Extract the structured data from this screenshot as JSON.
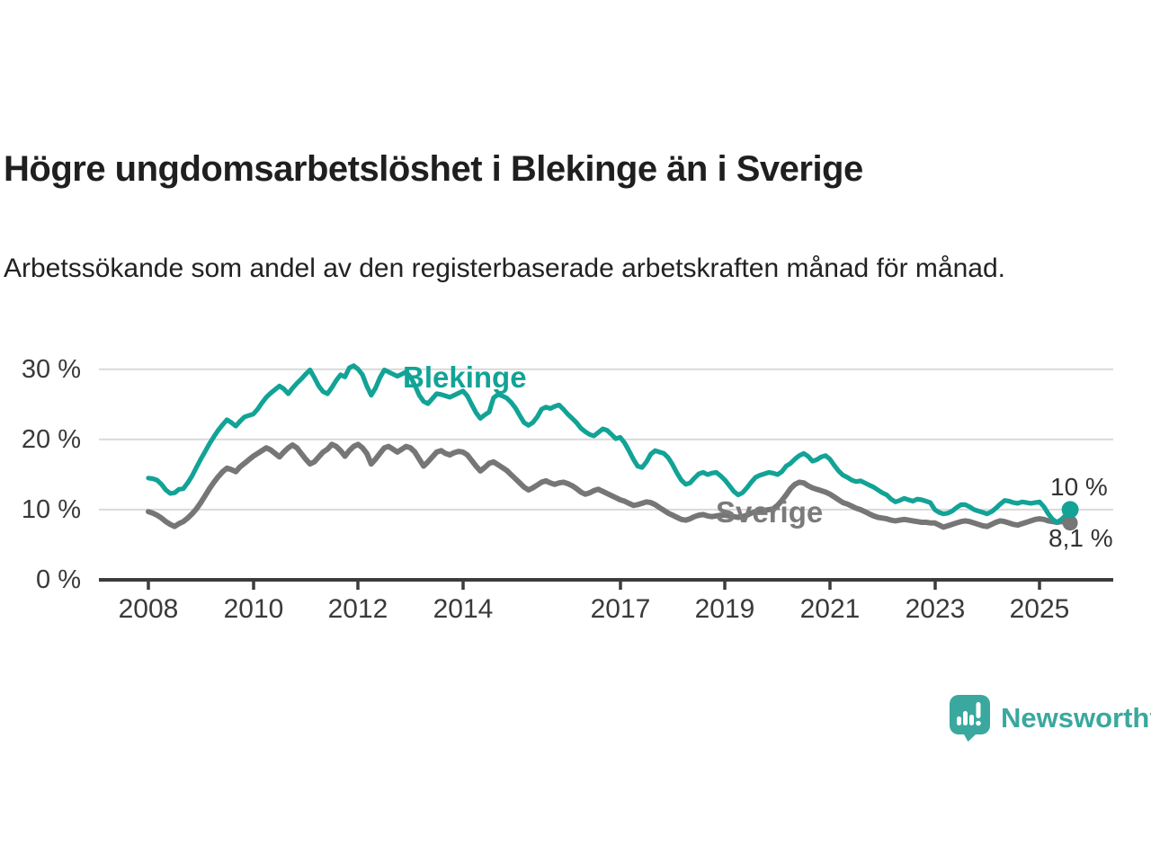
{
  "header": {
    "title": "Högre ungdomsarbetslöshet i Blekinge än i Sverige",
    "subtitle": "Arbetssökande som andel av den registerbaserade arbetskraften månad för månad."
  },
  "footer": {
    "brand": "Newsworthy",
    "logo_icon": "bar-chart-speech-bubble"
  },
  "colors": {
    "blekinge": "#12a396",
    "sverige": "#767676",
    "sverige_label": "#7b7b7b",
    "grid": "#d9d9d9",
    "axis": "#3c3c3c",
    "logo": "#3aa89e"
  },
  "chart_data": {
    "type": "line",
    "title": "Högre ungdomsarbetslöshet i Blekinge än i Sverige",
    "unit": "%",
    "frequency": "monthly",
    "x_range": [
      "2008-01",
      "2025-08"
    ],
    "ylim": [
      0,
      32
    ],
    "grid": "horizontal-only",
    "legend_position": "inline-labels",
    "y_ticks": [
      {
        "value": 30,
        "label": "30 %"
      },
      {
        "value": 20,
        "label": "20 %"
      },
      {
        "value": 10,
        "label": "10 %"
      },
      {
        "value": 0,
        "label": "0 %"
      }
    ],
    "x_ticks": [
      {
        "year": 2008,
        "label": "2008"
      },
      {
        "year": 2010,
        "label": "2010"
      },
      {
        "year": 2012,
        "label": "2012"
      },
      {
        "year": 2014,
        "label": "2014"
      },
      {
        "year": 2017,
        "label": "2017"
      },
      {
        "year": 2019,
        "label": "2019"
      },
      {
        "year": 2021,
        "label": "2021"
      },
      {
        "year": 2023,
        "label": "2023"
      },
      {
        "year": 2025,
        "label": "2025"
      }
    ],
    "series": [
      {
        "name": "Blekinge",
        "color": "#12a396",
        "end_label": "10 %",
        "last_value": 10.0,
        "values": [
          14.5,
          14.4,
          14.2,
          13.6,
          12.8,
          12.3,
          12.4,
          12.9,
          13.0,
          13.8,
          14.8,
          16.0,
          17.2,
          18.3,
          19.4,
          20.4,
          21.3,
          22.1,
          22.8,
          22.4,
          21.9,
          22.6,
          23.2,
          23.4,
          23.6,
          24.3,
          25.2,
          26.0,
          26.6,
          27.1,
          27.6,
          27.2,
          26.5,
          27.3,
          28.0,
          28.6,
          29.3,
          29.9,
          28.8,
          27.6,
          26.8,
          26.5,
          27.4,
          28.4,
          29.2,
          28.9,
          30.2,
          30.5,
          30.0,
          29.2,
          27.6,
          26.3,
          27.3,
          28.8,
          29.9,
          29.6,
          29.3,
          29.0,
          29.3,
          29.6,
          28.9,
          27.7,
          26.3,
          25.4,
          25.1,
          25.8,
          26.5,
          26.4,
          26.2,
          26.0,
          26.3,
          26.6,
          26.9,
          26.2,
          25.0,
          23.8,
          23.0,
          23.5,
          23.9,
          25.9,
          26.4,
          26.2,
          25.9,
          25.3,
          24.5,
          23.4,
          22.4,
          22.0,
          22.4,
          23.2,
          24.3,
          24.6,
          24.4,
          24.7,
          24.9,
          24.3,
          23.6,
          23.0,
          22.4,
          21.6,
          21.1,
          20.7,
          20.5,
          21.0,
          21.5,
          21.3,
          20.7,
          20.1,
          20.3,
          19.5,
          18.4,
          17.2,
          16.2,
          16.0,
          16.8,
          17.9,
          18.4,
          18.2,
          18.0,
          17.4,
          16.4,
          15.2,
          14.2,
          13.6,
          13.8,
          14.5,
          15.1,
          15.3,
          15.0,
          15.2,
          15.3,
          14.8,
          14.2,
          13.4,
          12.6,
          12.1,
          12.4,
          13.1,
          13.9,
          14.6,
          14.9,
          15.1,
          15.3,
          15.2,
          15.0,
          15.4,
          16.2,
          16.6,
          17.2,
          17.7,
          18.0,
          17.6,
          16.9,
          17.1,
          17.5,
          17.7,
          17.2,
          16.3,
          15.5,
          14.9,
          14.6,
          14.2,
          14.0,
          14.1,
          13.8,
          13.5,
          13.2,
          12.8,
          12.4,
          12.1,
          11.5,
          11.1,
          11.3,
          11.6,
          11.4,
          11.2,
          11.5,
          11.4,
          11.2,
          11.0,
          10.0,
          9.6,
          9.4,
          9.5,
          9.8,
          10.3,
          10.7,
          10.7,
          10.4,
          10.0,
          9.8,
          9.6,
          9.4,
          9.7,
          10.2,
          10.8,
          11.3,
          11.2,
          11.0,
          10.9,
          11.1,
          11.0,
          10.9,
          11.0,
          11.1,
          10.4,
          9.4,
          8.6,
          8.2,
          8.6,
          9.2,
          10.0
        ]
      },
      {
        "name": "Sverige",
        "color": "#767676",
        "end_label": "8,1 %",
        "last_value": 8.1,
        "values": [
          9.7,
          9.5,
          9.2,
          8.8,
          8.3,
          7.9,
          7.6,
          8.0,
          8.3,
          8.8,
          9.4,
          10.1,
          11.0,
          12.0,
          13.0,
          13.9,
          14.7,
          15.4,
          15.9,
          15.7,
          15.4,
          16.1,
          16.6,
          17.1,
          17.6,
          18.0,
          18.4,
          18.8,
          18.5,
          18.0,
          17.5,
          18.2,
          18.8,
          19.2,
          18.8,
          18.0,
          17.2,
          16.5,
          16.8,
          17.5,
          18.2,
          18.6,
          19.3,
          19.0,
          18.4,
          17.6,
          18.4,
          19.0,
          19.3,
          18.8,
          18.0,
          16.5,
          17.2,
          18.0,
          18.8,
          19.0,
          18.6,
          18.2,
          18.6,
          19.0,
          18.8,
          18.2,
          17.2,
          16.2,
          16.8,
          17.5,
          18.2,
          18.4,
          18.0,
          17.8,
          18.1,
          18.3,
          18.2,
          17.8,
          17.0,
          16.2,
          15.5,
          16.0,
          16.6,
          16.8,
          16.4,
          16.0,
          15.6,
          15.0,
          14.4,
          13.8,
          13.2,
          12.8,
          13.1,
          13.5,
          13.9,
          14.1,
          13.8,
          13.6,
          13.8,
          13.9,
          13.7,
          13.4,
          13.0,
          12.5,
          12.2,
          12.4,
          12.7,
          12.9,
          12.6,
          12.3,
          12.0,
          11.7,
          11.4,
          11.2,
          10.9,
          10.6,
          10.7,
          10.9,
          11.1,
          11.0,
          10.7,
          10.3,
          9.9,
          9.5,
          9.2,
          8.9,
          8.6,
          8.5,
          8.7,
          9.0,
          9.2,
          9.3,
          9.1,
          9.0,
          9.1,
          9.2,
          9.2,
          9.1,
          9.0,
          8.9,
          9.0,
          9.2,
          9.5,
          9.7,
          9.8,
          9.9,
          10.0,
          10.1,
          10.6,
          11.3,
          12.1,
          13.0,
          13.6,
          13.9,
          13.8,
          13.4,
          13.1,
          12.9,
          12.7,
          12.5,
          12.2,
          11.8,
          11.4,
          11.0,
          10.8,
          10.5,
          10.2,
          10.0,
          9.7,
          9.4,
          9.1,
          8.9,
          8.8,
          8.7,
          8.5,
          8.4,
          8.5,
          8.6,
          8.5,
          8.4,
          8.3,
          8.2,
          8.2,
          8.1,
          8.1,
          7.8,
          7.5,
          7.7,
          7.9,
          8.1,
          8.3,
          8.4,
          8.3,
          8.1,
          7.9,
          7.7,
          7.6,
          7.9,
          8.2,
          8.4,
          8.3,
          8.1,
          7.9,
          7.8,
          8.0,
          8.2,
          8.4,
          8.6,
          8.7,
          8.6,
          8.4,
          8.3,
          8.2,
          8.3,
          8.2,
          8.1
        ]
      }
    ]
  }
}
